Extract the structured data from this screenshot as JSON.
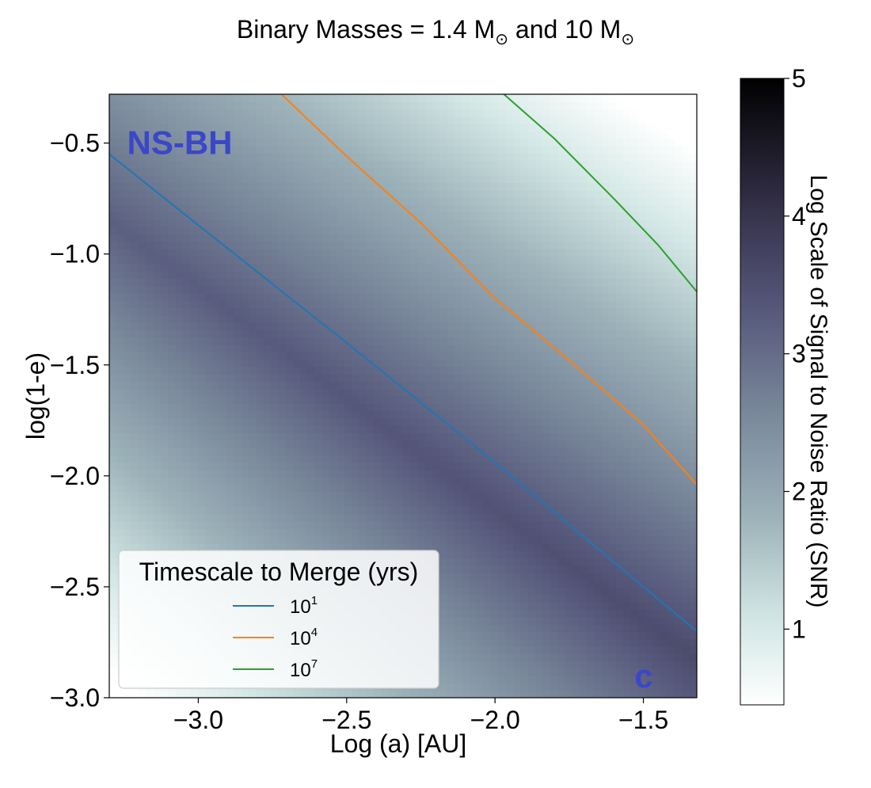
{
  "chart_data": {
    "type": "heatmap",
    "title": "Binary Masses = 1.4 M⊙ and 10 M⊙",
    "title_parts": {
      "prefix": "Binary Masses = 1.4 M",
      "middle": " and 10 M",
      "sun": "⊙"
    },
    "xlabel": "Log (a) [AU]",
    "ylabel": "log(1-e)",
    "xlim": [
      -3.3,
      -1.32
    ],
    "ylim": [
      -3.0,
      -0.28
    ],
    "x_ticks": [
      -3.0,
      -2.5,
      -2.0,
      -1.5
    ],
    "x_tick_labels": [
      "−3.0",
      "−2.5",
      "−2.0",
      "−1.5"
    ],
    "y_ticks": [
      -0.5,
      -1.0,
      -1.5,
      -2.0,
      -2.5,
      -3.0
    ],
    "y_tick_labels": [
      "−0.5",
      "−1.0",
      "−1.5",
      "−2.0",
      "−2.5",
      "−3.0"
    ],
    "colorbar": {
      "label": "Log Scale of Signal to Noise Ratio (SNR)",
      "range": [
        0.45,
        5.0
      ],
      "ticks": [
        1,
        2,
        3,
        4,
        5
      ],
      "tick_labels": [
        "1",
        "2",
        "3",
        "4",
        "5"
      ],
      "colormap": "bone_r"
    },
    "heatmap_field": {
      "description_free": true,
      "peak_value": 3.55,
      "ridge_intercept": -4.15,
      "ridge_slope": -1,
      "decay": 1.35,
      "min_visible": 0.45
    },
    "contours": [
      {
        "name": "10^1",
        "label_base": "10",
        "label_exp": "1",
        "color": "#1f77b4",
        "x": [
          -3.3,
          -3.0,
          -2.5,
          -2.0,
          -1.5,
          -1.32
        ],
        "y": [
          -0.55,
          -0.87,
          -1.4,
          -1.94,
          -2.5,
          -2.7
        ]
      },
      {
        "name": "10^4",
        "label_base": "10",
        "label_exp": "4",
        "color": "#ff7f0e",
        "x": [
          -2.72,
          -2.5,
          -2.25,
          -2.0,
          -1.75,
          -1.5,
          -1.32
        ],
        "y": [
          -0.28,
          -0.56,
          -0.86,
          -1.2,
          -1.48,
          -1.77,
          -2.04
        ]
      },
      {
        "name": "10^7",
        "label_base": "10",
        "label_exp": "7",
        "color": "#2ca02c",
        "x": [
          -1.97,
          -1.8,
          -1.6,
          -1.45,
          -1.32
        ],
        "y": [
          -0.28,
          -0.48,
          -0.75,
          -0.96,
          -1.17
        ]
      }
    ],
    "legend": {
      "title": "Timescale to Merge (yrs)",
      "placement": "lower-left"
    },
    "annotations": [
      {
        "text": "NS-BH",
        "x": -3.24,
        "y": -0.5
      },
      {
        "text": "c",
        "x": -1.53,
        "y": -2.9
      }
    ],
    "grid": false
  }
}
